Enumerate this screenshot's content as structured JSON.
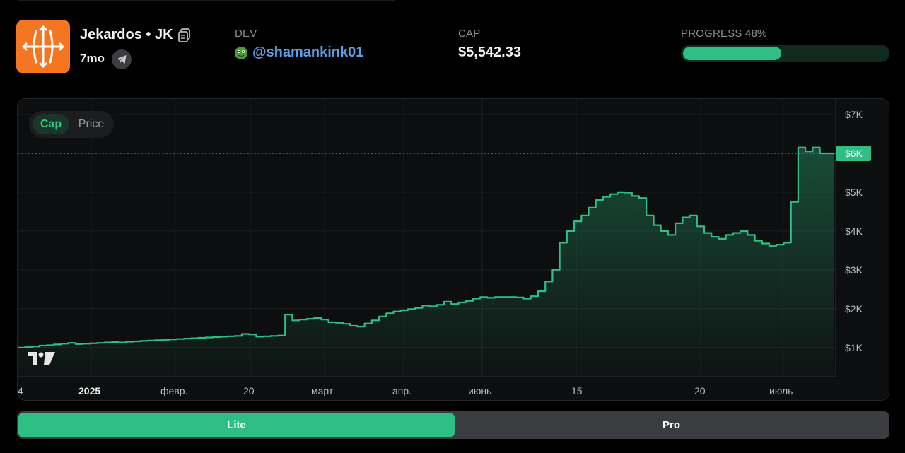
{
  "token": {
    "name": "Jekardos • JK",
    "age": "7mo"
  },
  "dev": {
    "label": "DEV",
    "handle": "@shamankink01"
  },
  "cap": {
    "label": "CAP",
    "value": "$5,542.33"
  },
  "progress": {
    "label": "PROGRESS 48%",
    "percent": 48
  },
  "mode_toggle": {
    "options": [
      "Cap",
      "Price"
    ],
    "selected": "Cap"
  },
  "view_toggle": {
    "options": [
      "Lite",
      "Pro"
    ],
    "selected": "Lite"
  },
  "colors": {
    "accent": "#2fbf85",
    "logo_bg": "#f47621",
    "dev_link": "#5aa0e6"
  },
  "icons": [
    "token-logo-icon",
    "copy-icon",
    "telegram-icon",
    "dev-avatar-icon",
    "tradingview-logo-icon"
  ],
  "chart_data": {
    "type": "area",
    "step": true,
    "y_ticks": [
      "$1K",
      "$2K",
      "$3K",
      "$4K",
      "$5K",
      "$6K",
      "$7K"
    ],
    "x_ticks": [
      "4",
      "2025",
      "февр.",
      "20",
      "март",
      "апр.",
      "июнь",
      "15",
      "20",
      "июль"
    ],
    "current_value_label": "$6K",
    "current_value": 6000,
    "ylim": [
      250,
      7400
    ],
    "points_y": [
      1000,
      1010,
      1030,
      1050,
      1060,
      1080,
      1100,
      1120,
      1090,
      1100,
      1110,
      1120,
      1130,
      1140,
      1130,
      1150,
      1160,
      1170,
      1180,
      1190,
      1200,
      1210,
      1220,
      1230,
      1240,
      1250,
      1260,
      1270,
      1280,
      1290,
      1300,
      1350,
      1340,
      1280,
      1290,
      1300,
      1310,
      1850,
      1700,
      1720,
      1740,
      1760,
      1720,
      1650,
      1640,
      1610,
      1560,
      1540,
      1620,
      1700,
      1800,
      1880,
      1930,
      1960,
      1990,
      2020,
      2080,
      2060,
      2100,
      2180,
      2120,
      2160,
      2200,
      2260,
      2300,
      2280,
      2300,
      2300,
      2300,
      2290,
      2260,
      2320,
      2450,
      2700,
      3000,
      3700,
      4000,
      4250,
      4400,
      4600,
      4800,
      4880,
      4950,
      5000,
      4990,
      4900,
      4850,
      4400,
      4150,
      4000,
      3900,
      4200,
      4350,
      4400,
      4120,
      3950,
      3850,
      3800,
      3900,
      3950,
      4000,
      3900,
      3750,
      3680,
      3620,
      3650,
      3700,
      4750,
      6150,
      6050,
      6150,
      6000,
      6000
    ]
  }
}
